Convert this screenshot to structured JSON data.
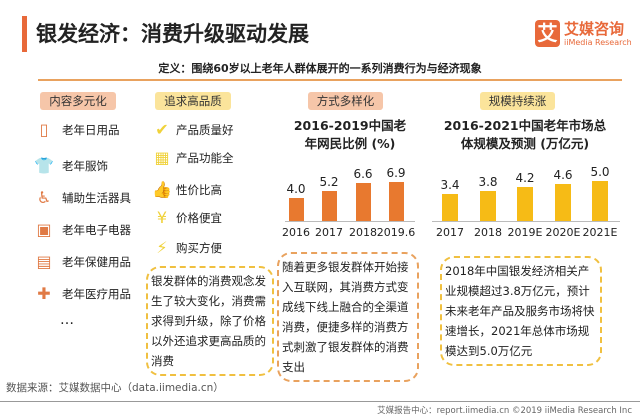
{
  "header": {
    "title": "银发经济：消费升级驱动发展",
    "logo_mark": "艾",
    "logo_cn": "艾媒咨询",
    "logo_en": "iiMedia Research"
  },
  "definition": "定义：围绕60岁以上老年人群体展开的一系列消费行为与经济现象",
  "columns": [
    {
      "heading": "内容多元化",
      "items": [
        {
          "icon": "paper-roll-icon",
          "glyph": "▯",
          "label": "老年日用品"
        },
        {
          "icon": "shirt-icon",
          "glyph": "👕",
          "label": "老年服饰"
        },
        {
          "icon": "wheelchair-icon",
          "glyph": "♿",
          "label": "辅助生活器具"
        },
        {
          "icon": "devices-icon",
          "glyph": "▣",
          "label": "老年电子电器"
        },
        {
          "icon": "pill-bottle-icon",
          "glyph": "▤",
          "label": "老年保健用品"
        },
        {
          "icon": "medical-kit-icon",
          "glyph": "✚",
          "label": "老年医疗用品"
        }
      ],
      "more": "…"
    },
    {
      "heading": "追求高品质",
      "items": [
        {
          "icon": "shield-check-icon",
          "glyph": "✔",
          "label": "产品质量好"
        },
        {
          "icon": "grid-icon",
          "glyph": "▦",
          "label": "产品功能全"
        },
        {
          "icon": "thumbs-up-icon",
          "glyph": "👍",
          "label": "性价比高"
        },
        {
          "icon": "yen-icon",
          "glyph": "¥",
          "label": "价格便宜"
        },
        {
          "icon": "lightning-icon",
          "glyph": "⚡",
          "label": "购买方便"
        }
      ],
      "note": "银发群体的消费观念发生了较大变化，消费需求得到升级，除了价格以外还追求更高品质的消费"
    },
    {
      "heading": "方式多样化",
      "note": "随着更多银发群体开始接入互联网，其消费方式变成线下线上融合的全渠道消费，便捷多样的消费方式刺激了银发群体的消费支出"
    },
    {
      "heading": "规模持续涨",
      "note": "2018年中国银发经济相关产业规模超过3.8万亿元，预计未来老年产品及服务市场将快速增长，2021年总体市场规模达到5.0万亿元"
    }
  ],
  "chart_data": [
    {
      "type": "bar",
      "title_line1": "2016-2019中国老",
      "title_line2": "年网民比例 (%)",
      "categories": [
        "2016",
        "2017",
        "2018",
        "2019.6"
      ],
      "values": [
        4.0,
        5.2,
        6.6,
        6.9
      ],
      "labels": [
        "4.0",
        "5.2",
        "6.6",
        "6.9"
      ],
      "color": "#e8792f",
      "ylim": [
        0,
        7
      ]
    },
    {
      "type": "bar",
      "title_line1": "2016-2021中国老年市场总",
      "title_line2": "体规模及预测 (万亿元)",
      "categories": [
        "2017",
        "2018",
        "2019E",
        "2020E",
        "2021E"
      ],
      "values": [
        3.4,
        3.8,
        4.2,
        4.6,
        5.0
      ],
      "labels": [
        "3.4",
        "3.8",
        "4.2",
        "4.6",
        "5.0"
      ],
      "color": "#f6bb16",
      "ylim": [
        0,
        5
      ]
    }
  ],
  "source": "数据来源：艾媒数据中心（data.iimedia.cn）",
  "footer": "艾媒报告中心：report.iimedia.cn  ©2019  iiMedia Research Inc"
}
